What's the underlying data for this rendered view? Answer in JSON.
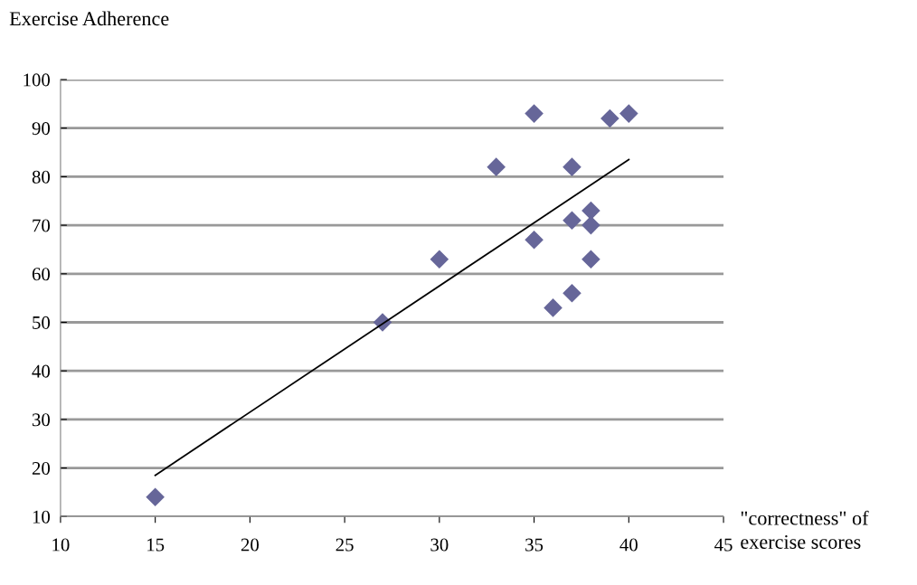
{
  "chart_data": {
    "type": "scatter",
    "ylabel": "Exercise Adherence",
    "xlabel": "\"correctness\" of\nexercise scores",
    "series": [
      {
        "color": "#666699",
        "marker": "diamond",
        "x": [
          15,
          27,
          30,
          33,
          35,
          35,
          36,
          37,
          37,
          37,
          38,
          38,
          38,
          39,
          40
        ],
        "values": [
          14,
          50,
          63,
          82,
          93,
          67,
          53,
          82,
          71,
          56,
          73,
          70,
          63,
          92,
          93
        ]
      },
      {
        "type": "line",
        "color": "#000000",
        "marker": "none",
        "line_style": "solid",
        "x": [
          15,
          40
        ],
        "values": [
          18.5,
          83.5
        ]
      }
    ],
    "xlim": [
      10,
      45
    ],
    "xticks": [
      10,
      15,
      20,
      25,
      30,
      35,
      40,
      45
    ],
    "ylim": [
      10,
      100
    ],
    "yticks": [
      10,
      20,
      30,
      40,
      50,
      60,
      70,
      80,
      90,
      100
    ],
    "grid": "y",
    "legend": false
  }
}
